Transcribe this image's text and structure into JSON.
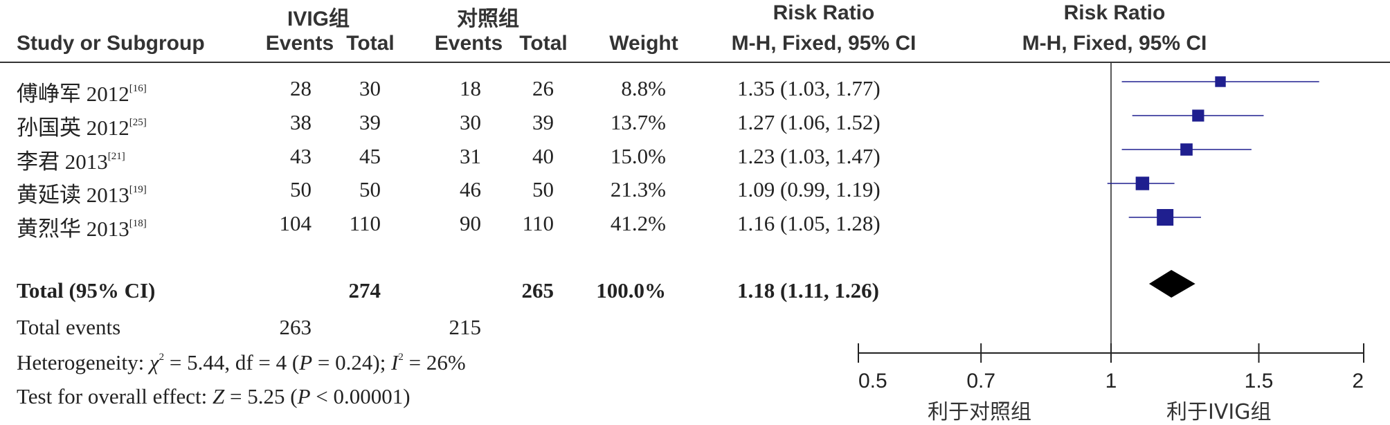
{
  "header": {
    "group_exp": "IVIG组",
    "group_ctl": "对照组",
    "study_col": "Study or Subgroup",
    "events": "Events",
    "total": "Total",
    "weight": "Weight",
    "rr_title": "Risk Ratio",
    "rr_method": "M-H, Fixed, 95% CI",
    "plot_title": "Risk Ratio",
    "plot_method": "M-H, Fixed, 95% CI"
  },
  "studies": [
    {
      "name": "傅峥军 2012",
      "ref": "[16]",
      "exp_events": "28",
      "exp_total": "30",
      "ctl_events": "18",
      "ctl_total": "26",
      "weight": "8.8%",
      "ci_text": "1.35 (1.03, 1.77)"
    },
    {
      "name": "孙国英 2012",
      "ref": "[25]",
      "exp_events": "38",
      "exp_total": "39",
      "ctl_events": "30",
      "ctl_total": "39",
      "weight": "13.7%",
      "ci_text": "1.27 (1.06, 1.52)"
    },
    {
      "name": "李君 2013",
      "ref": "[21]",
      "exp_events": "43",
      "exp_total": "45",
      "ctl_events": "31",
      "ctl_total": "40",
      "weight": "15.0%",
      "ci_text": "1.23 (1.03, 1.47)"
    },
    {
      "name": "黄延读 2013",
      "ref": "[19]",
      "exp_events": "50",
      "exp_total": "50",
      "ctl_events": "46",
      "ctl_total": "50",
      "weight": "21.3%",
      "ci_text": "1.09 (0.99, 1.19)"
    },
    {
      "name": "黄烈华 2013",
      "ref": "[18]",
      "exp_events": "104",
      "exp_total": "110",
      "ctl_events": "90",
      "ctl_total": "110",
      "weight": "41.2%",
      "ci_text": "1.16 (1.05, 1.28)"
    }
  ],
  "total_row": {
    "label": "Total (95% CI)",
    "exp_total": "274",
    "ctl_total": "265",
    "weight": "100.0%",
    "ci_text": "1.18 (1.11, 1.26)"
  },
  "events_row": {
    "label": "Total events",
    "exp_events": "263",
    "ctl_events": "215"
  },
  "heterogeneity": {
    "prefix": "Heterogeneity: ",
    "chi_sym": "χ",
    "chi_sup": "2",
    "chi_rest": " = 5.44, df = 4 (",
    "p_sym": "P",
    "p_rest": " = 0.24); ",
    "i_sym": "I",
    "i_sup": "2",
    "i_rest": " = 26%"
  },
  "overall": {
    "prefix": "Test for overall effect: ",
    "z_sym": "Z",
    "z_rest": " = 5.25 (",
    "p_sym": "P",
    "p_rest": " < 0.00001)"
  },
  "favours": {
    "left": "利于对照组",
    "right": "利于IVIG组"
  },
  "chart_data": {
    "type": "forest",
    "x_scale": "log",
    "xlim": [
      0.5,
      2
    ],
    "ticks": [
      0.5,
      0.7,
      1,
      1.5,
      2
    ],
    "tick_labels": [
      "0.5",
      "0.7",
      "1",
      "1.5",
      "2"
    ],
    "null_line": 1,
    "points": [
      {
        "rr": 1.35,
        "lo": 1.03,
        "hi": 1.77,
        "weight": 8.8
      },
      {
        "rr": 1.27,
        "lo": 1.06,
        "hi": 1.52,
        "weight": 13.7
      },
      {
        "rr": 1.23,
        "lo": 1.03,
        "hi": 1.47,
        "weight": 15.0
      },
      {
        "rr": 1.09,
        "lo": 0.99,
        "hi": 1.19,
        "weight": 21.3
      },
      {
        "rr": 1.16,
        "lo": 1.05,
        "hi": 1.28,
        "weight": 41.2
      }
    ],
    "pooled": {
      "rr": 1.18,
      "lo": 1.11,
      "hi": 1.26
    },
    "colors": {
      "square": "#1f1f8f",
      "line": "#1f1f8f",
      "diamond": "#000000",
      "axis": "#222222"
    }
  }
}
